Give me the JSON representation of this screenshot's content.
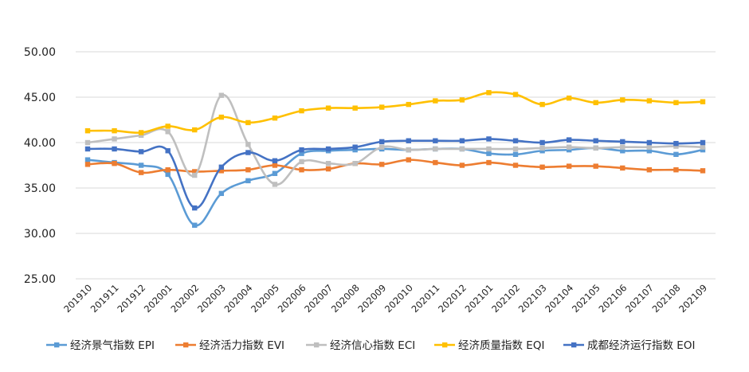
{
  "chart_data": {
    "type": "line",
    "title": "",
    "xlabel": "",
    "ylabel": "",
    "ylim": [
      25,
      50
    ],
    "yticks": [
      "25.00",
      "30.00",
      "35.00",
      "40.00",
      "45.00",
      "50.00"
    ],
    "grid": true,
    "legend_position": "bottom",
    "categories": [
      "201910",
      "201911",
      "201912",
      "202001",
      "202002",
      "202003",
      "202004",
      "202005",
      "202006",
      "202007",
      "202008",
      "202009",
      "202010",
      "202011",
      "202012",
      "202101",
      "202102",
      "202103",
      "202104",
      "202105",
      "202106",
      "202107",
      "202108",
      "202109"
    ],
    "series": [
      {
        "name": "经济景气指数 EPI",
        "color": "#5b9bd5",
        "values": [
          38.1,
          37.8,
          37.5,
          36.5,
          30.9,
          34.4,
          35.8,
          36.6,
          38.8,
          39.1,
          39.2,
          39.3,
          39.2,
          39.3,
          39.3,
          38.8,
          38.7,
          39.1,
          39.2,
          39.4,
          39.1,
          39.1,
          38.7,
          39.2
        ]
      },
      {
        "name": "经济活力指数 EVI",
        "color": "#ed7d31",
        "values": [
          37.6,
          37.7,
          36.7,
          37.0,
          36.8,
          36.9,
          37.0,
          37.5,
          37.0,
          37.1,
          37.7,
          37.6,
          38.1,
          37.8,
          37.5,
          37.8,
          37.5,
          37.3,
          37.4,
          37.4,
          37.2,
          37.0,
          37.0,
          36.9
        ]
      },
      {
        "name": "经济信心指数 ECI",
        "color": "#bfbfbf",
        "values": [
          40.0,
          40.4,
          40.8,
          41.2,
          36.4,
          45.2,
          39.8,
          35.4,
          37.9,
          37.7,
          37.7,
          39.5,
          39.2,
          39.3,
          39.3,
          39.3,
          39.3,
          39.4,
          39.5,
          39.4,
          39.5,
          39.5,
          39.6,
          39.5
        ]
      },
      {
        "name": "经济质量指数 EQI",
        "color": "#ffc000",
        "values": [
          41.3,
          41.3,
          41.1,
          41.8,
          41.4,
          42.8,
          42.2,
          42.7,
          43.5,
          43.8,
          43.8,
          43.9,
          44.2,
          44.6,
          44.7,
          45.5,
          45.3,
          44.2,
          44.9,
          44.4,
          44.7,
          44.6,
          44.4,
          44.5
        ]
      },
      {
        "name": "成都经济运行指数 EOI",
        "color": "#4472c4",
        "values": [
          39.3,
          39.3,
          39.0,
          39.1,
          32.8,
          37.3,
          38.9,
          38.0,
          39.2,
          39.3,
          39.5,
          40.1,
          40.2,
          40.2,
          40.2,
          40.4,
          40.2,
          40.0,
          40.3,
          40.2,
          40.1,
          40.0,
          39.9,
          40.0
        ]
      }
    ]
  }
}
